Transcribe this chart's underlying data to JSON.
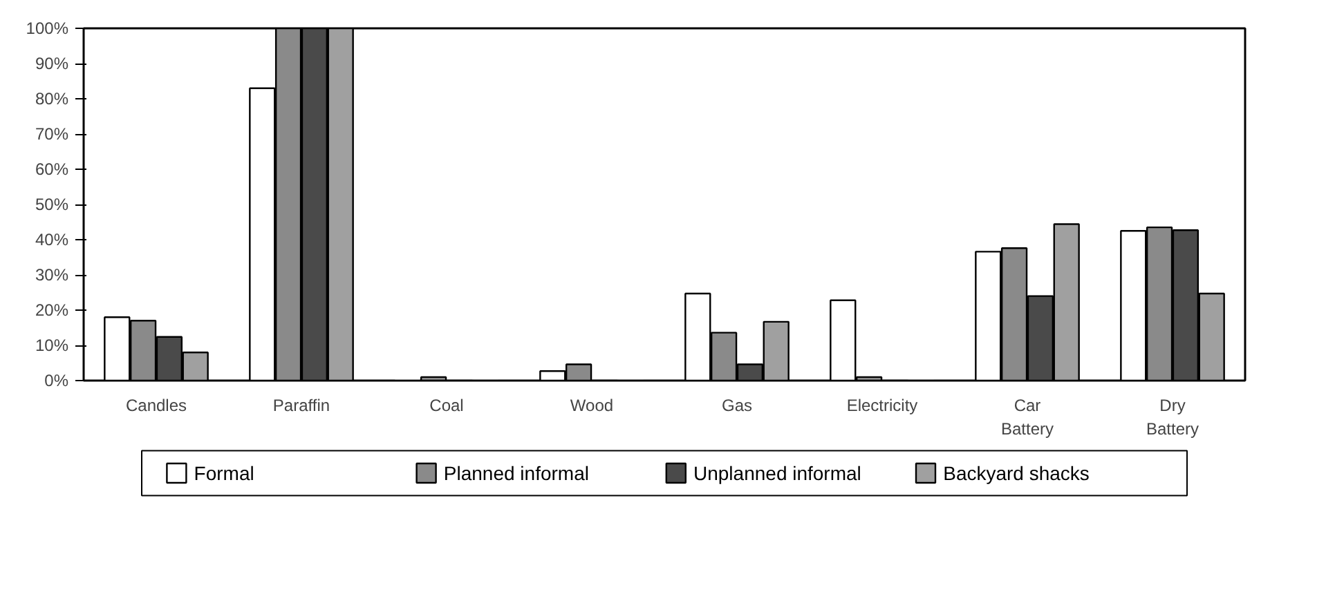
{
  "chart_data": {
    "type": "bar",
    "categories": [
      "Candles",
      "Paraffin",
      "Coal",
      "Wood",
      "Gas",
      "Electricity",
      "Car Battery",
      "Dry Battery"
    ],
    "series": [
      {
        "name": "Formal",
        "color": "#ffffff",
        "values": [
          18,
          83,
          0,
          2.7,
          24.7,
          22.8,
          36.6,
          42.5
        ]
      },
      {
        "name": "Planned informal",
        "color": "#8a8a8a",
        "values": [
          17,
          100,
          1,
          4.6,
          13.6,
          1,
          37.6,
          43.5
        ]
      },
      {
        "name": "Unplanned informal",
        "color": "#4a4a4a",
        "values": [
          12.4,
          100,
          0,
          0,
          4.6,
          0,
          24,
          42.7
        ]
      },
      {
        "name": "Backyard shacks",
        "color": "#a0a0a0",
        "values": [
          8,
          100,
          0,
          0,
          16.7,
          0,
          44.4,
          24.7
        ]
      }
    ],
    "ylim": [
      0,
      100
    ],
    "yticks": [
      {
        "value": 0,
        "label": "0%"
      },
      {
        "value": 10,
        "label": "10%"
      },
      {
        "value": 20,
        "label": "20%"
      },
      {
        "value": 30,
        "label": "30%"
      },
      {
        "value": 40,
        "label": "40%"
      },
      {
        "value": 50,
        "label": "50%"
      },
      {
        "value": 60,
        "label": "60%"
      },
      {
        "value": 70,
        "label": "70%"
      },
      {
        "value": 80,
        "label": "80%"
      },
      {
        "value": 90,
        "label": "90%"
      },
      {
        "value": 100,
        "label": "100%"
      }
    ],
    "grid": false,
    "legend": "bottom"
  }
}
